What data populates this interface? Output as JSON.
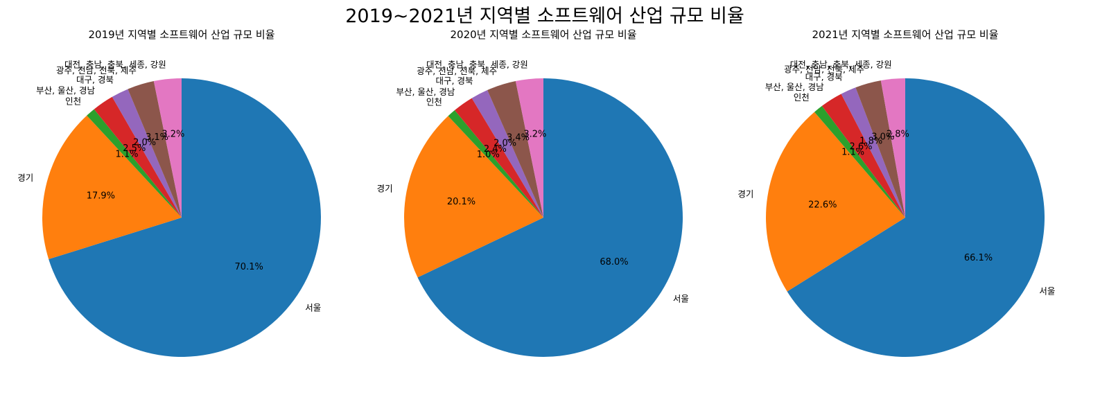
{
  "suptitle": "2019~2021년 지역별 소프트웨어 산업 규모 비율",
  "colors": [
    "#1f77b4",
    "#ff7f0e",
    "#2ca02c",
    "#d62728",
    "#9467bd",
    "#8c564b",
    "#e377c2"
  ],
  "chart_data": [
    {
      "type": "pie",
      "title": "2019년 지역별 소프트웨어 산업 규모 비율",
      "start_angle_deg": 90,
      "direction": "clockwise",
      "labels": [
        "서울",
        "경기",
        "인천",
        "부산, 울산, 경남",
        "대구, 경북",
        "광주, 전남, 전북, 제주",
        "대전, 충남, 충북, 세종, 강원"
      ],
      "values": [
        70.1,
        17.9,
        1.1,
        2.5,
        2.0,
        3.1,
        3.2
      ],
      "pct_labels": [
        "70.1%",
        "17.9%",
        "1.1%",
        "2.5%",
        "2.0%",
        "3.1%",
        "3.2%"
      ]
    },
    {
      "type": "pie",
      "title": "2020년 지역별 소프트웨어 산업 규모 비율",
      "start_angle_deg": 90,
      "direction": "clockwise",
      "labels": [
        "서울",
        "경기",
        "인천",
        "부산, 울산, 경남",
        "대구, 경북",
        "광주, 전남, 전북, 제주",
        "대전, 충남, 충북, 세종, 강원"
      ],
      "values": [
        68.0,
        20.1,
        1.0,
        2.4,
        2.0,
        3.4,
        3.2
      ],
      "pct_labels": [
        "68.0%",
        "20.1%",
        "1.0%",
        "2.4%",
        "2.0%",
        "3.4%",
        "3.2%"
      ]
    },
    {
      "type": "pie",
      "title": "2021년 지역별 소프트웨어 산업 규모 비율",
      "start_angle_deg": 90,
      "direction": "clockwise",
      "labels": [
        "서울",
        "경기",
        "인천",
        "부산, 울산, 경남",
        "대구, 경북",
        "광주, 전남, 전북, 제주",
        "대전, 충남, 충북, 세종, 강원"
      ],
      "values": [
        66.1,
        22.6,
        1.1,
        2.6,
        1.8,
        3.0,
        2.8
      ],
      "pct_labels": [
        "66.1%",
        "22.6%",
        "1.1%",
        "2.6%",
        "1.8%",
        "3.0%",
        "2.8%"
      ]
    }
  ]
}
